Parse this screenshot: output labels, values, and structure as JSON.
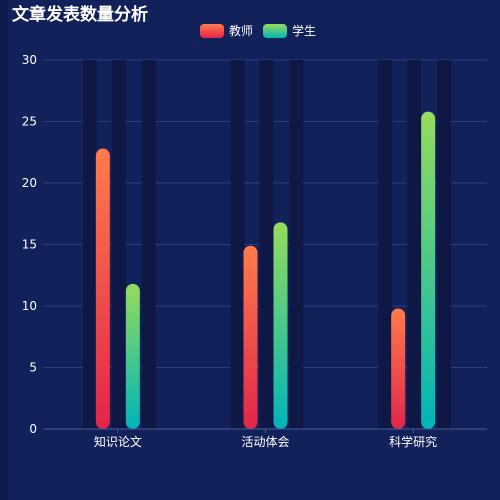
{
  "chart_data": {
    "type": "bar",
    "title": "文章发表数量分析",
    "categories": [
      "知识论文",
      "活动体会",
      "科学研究"
    ],
    "series": [
      {
        "name": "教师",
        "values": [
          22.8,
          14.9,
          9.8
        ],
        "gradient": [
          "#ff7b4a",
          "#e2254a"
        ]
      },
      {
        "name": "学生",
        "values": [
          11.8,
          16.8,
          25.8
        ],
        "gradient": [
          "#95dc5c",
          "#00b4b8"
        ]
      }
    ],
    "ylim": [
      0,
      30
    ],
    "yticks": [
      0,
      5,
      10,
      15,
      20,
      25,
      30
    ],
    "legend_position": "top-center",
    "grid": true,
    "colors": {
      "background": "#13215a",
      "track": "#0f1845",
      "grid": "#2c3d7a",
      "axis": "#4a5b96",
      "text": "#ffffff"
    }
  }
}
